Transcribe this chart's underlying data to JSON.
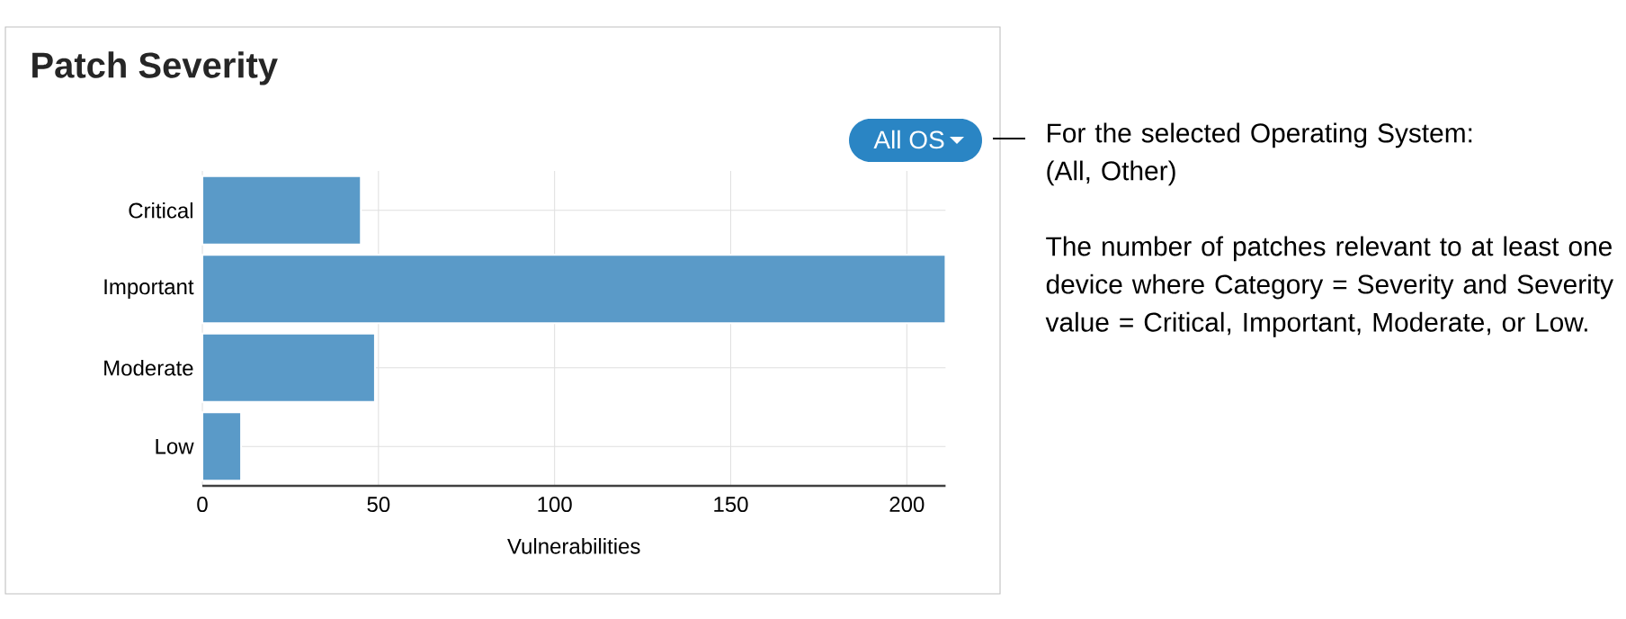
{
  "chart_data": {
    "type": "bar",
    "orientation": "horizontal",
    "title": "Patch Severity",
    "xlabel": "Vulnerabilities",
    "categories": [
      "Critical",
      "Important",
      "Moderate",
      "Low"
    ],
    "values": [
      45,
      211,
      49,
      11
    ],
    "color": "#5a9ac8",
    "xlim": [
      0,
      211
    ],
    "xticks": [
      0,
      50,
      100,
      150,
      200
    ],
    "grid": true,
    "annotations": [
      "All OS",
      "For the selected Operating System:",
      "(All, Other)",
      "The number of patches relevant to at least one device where Category = Severity and Severity value = Critical, Important, Moderate, or Low."
    ]
  }
}
